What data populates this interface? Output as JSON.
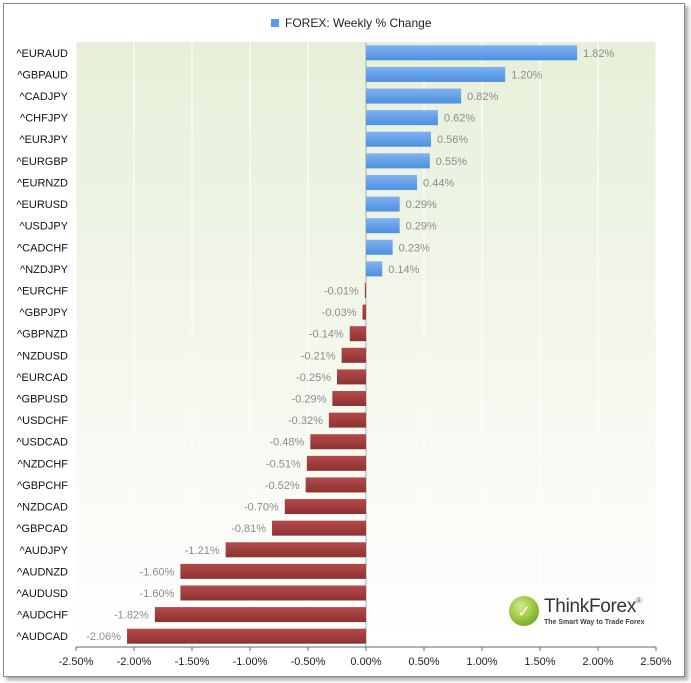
{
  "chart_data": {
    "type": "bar",
    "orientation": "horizontal",
    "title": "FOREX: Weekly % Change",
    "legend": [
      "FOREX: Weekly % Change"
    ],
    "legend_placement": "top-center",
    "categories": [
      "^EURAUD",
      "^GBPAUD",
      "^CADJPY",
      "^CHFJPY",
      "^EURJPY",
      "^EURGBP",
      "^EURNZD",
      "^EURUSD",
      "^USDJPY",
      "^CADCHF",
      "^NZDJPY",
      "^EURCHF",
      "^GBPJPY",
      "^GBPNZD",
      "^NZDUSD",
      "^EURCAD",
      "^GBPUSD",
      "^USDCHF",
      "^USDCAD",
      "^NZDCHF",
      "^GBPCHF",
      "^NZDCAD",
      "^GBPCAD",
      "^AUDJPY",
      "^AUDNZD",
      "^AUDUSD",
      "^AUDCHF",
      "^AUDCAD"
    ],
    "values": [
      1.82,
      1.2,
      0.82,
      0.62,
      0.56,
      0.55,
      0.44,
      0.29,
      0.29,
      0.23,
      0.14,
      -0.01,
      -0.03,
      -0.14,
      -0.21,
      -0.25,
      -0.29,
      -0.32,
      -0.48,
      -0.51,
      -0.52,
      -0.7,
      -0.81,
      -1.21,
      -1.6,
      -1.6,
      -1.82,
      -2.06
    ],
    "value_labels": [
      "1.82%",
      "1.20%",
      "0.82%",
      "0.62%",
      "0.56%",
      "0.55%",
      "0.44%",
      "0.29%",
      "0.29%",
      "0.23%",
      "0.14%",
      "-0.01%",
      "-0.03%",
      "-0.14%",
      "-0.21%",
      "-0.25%",
      "-0.29%",
      "-0.32%",
      "-0.48%",
      "-0.51%",
      "-0.52%",
      "-0.70%",
      "-0.81%",
      "-1.21%",
      "-1.60%",
      "-1.60%",
      "-1.82%",
      "-2.06%"
    ],
    "xlim": [
      -2.5,
      2.5
    ],
    "xticks": [
      -2.5,
      -2.0,
      -1.5,
      -1.0,
      -0.5,
      0.0,
      0.5,
      1.0,
      1.5,
      2.0,
      2.5
    ],
    "xtick_labels": [
      "-2.50%",
      "-2.00%",
      "-1.50%",
      "-1.00%",
      "-0.50%",
      "0.00%",
      "0.50%",
      "1.00%",
      "1.50%",
      "2.00%",
      "2.50%"
    ],
    "grid": "vertical",
    "colors": {
      "positive": "#5b9be8",
      "negative": "#a03c3c",
      "plot_background": "#eef3e2"
    }
  },
  "logo": {
    "name": "ThinkForex",
    "registered": "®",
    "tagline": "The Smart Way to Trade Forex"
  }
}
